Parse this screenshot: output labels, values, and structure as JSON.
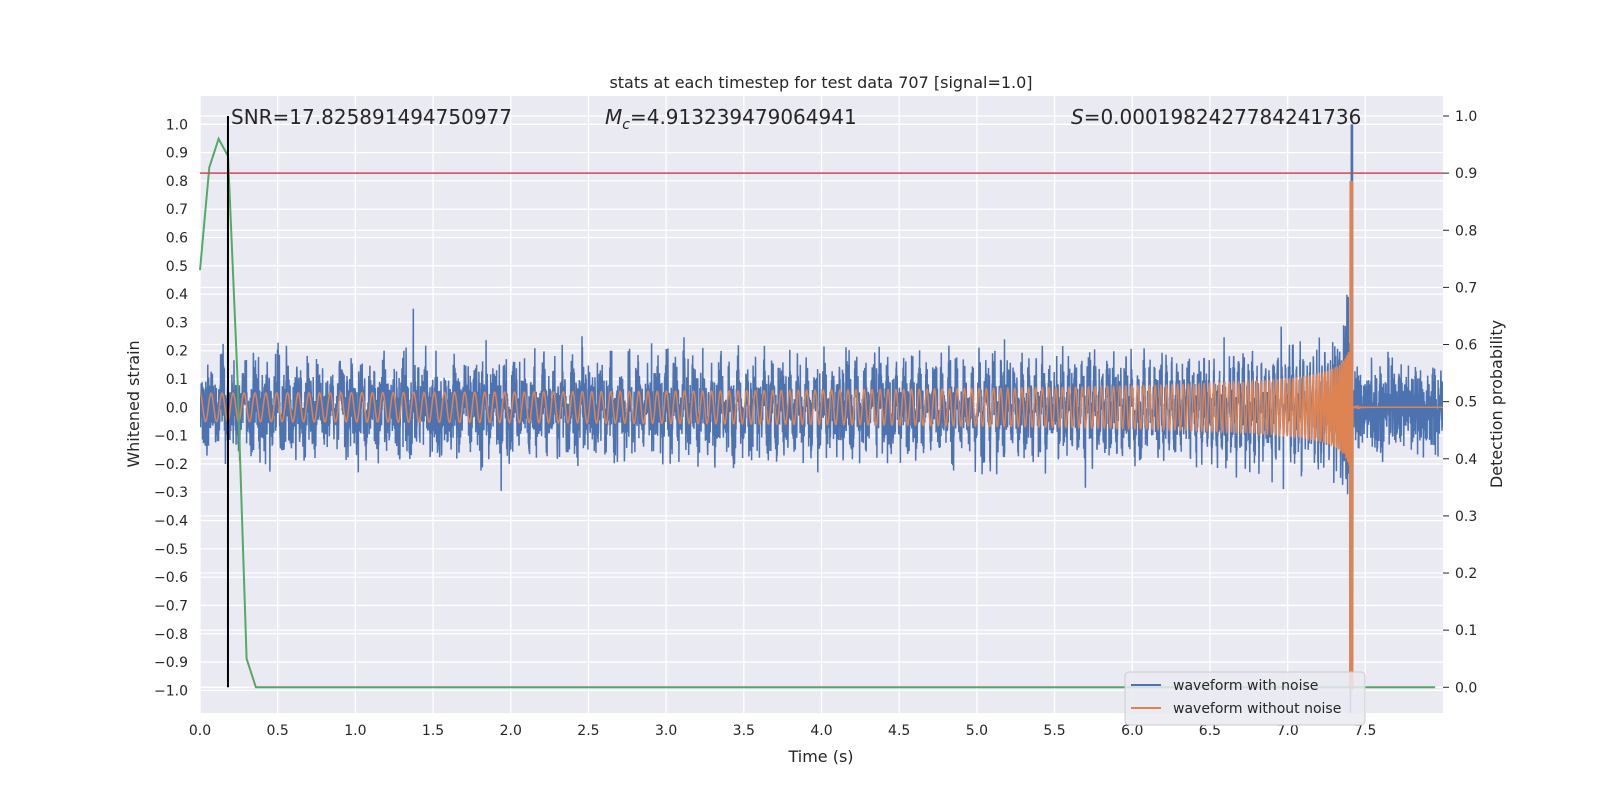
{
  "chart_data": {
    "type": "line",
    "title": "stats at each timestep for test data 707 [signal=1.0]",
    "xlabel": "Time (s)",
    "ylabel_left": "Whitened strain",
    "ylabel_right": "Detection probability",
    "xlim": [
      0.0,
      8.0
    ],
    "ylim_left": [
      -1.08,
      1.1
    ],
    "ylim_right": [
      -0.045,
      1.035
    ],
    "x_ticks": [
      "0.0",
      "0.5",
      "1.0",
      "1.5",
      "2.0",
      "2.5",
      "3.0",
      "3.5",
      "4.0",
      "4.5",
      "5.0",
      "5.5",
      "6.0",
      "6.5",
      "7.0",
      "7.5"
    ],
    "y_ticks_left": [
      "1.0",
      "0.9",
      "0.8",
      "0.7",
      "0.6",
      "0.5",
      "0.4",
      "0.3",
      "0.2",
      "0.1",
      "0.0",
      "−0.1",
      "−0.2",
      "−0.3",
      "−0.4",
      "−0.5",
      "−0.6",
      "−0.7",
      "−0.8",
      "−0.9",
      "−1.0"
    ],
    "y_ticks_right": [
      "1.0",
      "0.9",
      "0.8",
      "0.7",
      "0.6",
      "0.5",
      "0.4",
      "0.3",
      "0.2",
      "0.1",
      "0.0"
    ],
    "grid": true,
    "legend_position": "bottom-right",
    "annotations": {
      "snr": "SNR=17.825891494750977",
      "mc_symbol": "M",
      "mc_sub": "c",
      "mc_value": "=4.913239479064941",
      "s_symbol": "S",
      "s_value": "=0.0001982427784241736"
    },
    "threshold_probability": 0.9,
    "detection_time": 0.18,
    "merger_time": 7.42,
    "series": [
      {
        "name": "waveform with noise",
        "color": "#4c72b0",
        "noise_amplitude": 0.23,
        "peak": 1.0,
        "trough": -0.9
      },
      {
        "name": "waveform without noise",
        "color": "#dd8452",
        "start_amplitude": 0.05,
        "peak": 0.8,
        "trough": -1.0
      },
      {
        "name": "",
        "color": "#55a868",
        "x": [
          0.0,
          0.06,
          0.12,
          0.18,
          0.24,
          0.3,
          0.36,
          0.42,
          1.0,
          2.0,
          3.0,
          4.0,
          5.0,
          6.0,
          7.0,
          7.95
        ],
        "y": [
          0.73,
          0.91,
          0.96,
          0.93,
          0.55,
          0.05,
          0.0,
          0.0,
          0.0,
          0.0,
          0.0,
          0.0,
          0.0,
          0.0,
          0.0,
          0.0
        ]
      }
    ],
    "threshold_color": "#c44e52",
    "detection_line_color": "#000000"
  }
}
